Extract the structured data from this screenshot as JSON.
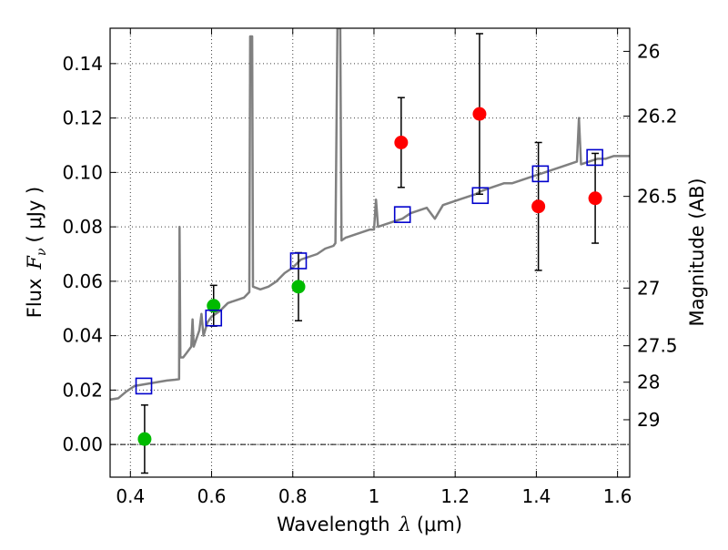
{
  "chart_data": {
    "type": "scatter",
    "xlabel": "Wavelength",
    "xlabel_symbol": "λ",
    "xlabel_unit": "(μm)",
    "ylabel": "Flux",
    "ylabel_symbol": "F",
    "ylabel_subscript": "ν",
    "ylabel_unit": "( μJy )",
    "y2label": "Magnitude (AB)",
    "xlim": [
      0.35,
      1.63
    ],
    "ylim": [
      -0.012,
      0.153
    ],
    "grid": true,
    "zero_line": true,
    "x_ticks": [
      {
        "value": 0.4,
        "label": "0.4"
      },
      {
        "value": 0.6,
        "label": "0.6"
      },
      {
        "value": 0.8,
        "label": "0.8"
      },
      {
        "value": 1.0,
        "label": "1"
      },
      {
        "value": 1.2,
        "label": "1.2"
      },
      {
        "value": 1.4,
        "label": "1.4"
      },
      {
        "value": 1.6,
        "label": "1.6"
      }
    ],
    "y_ticks": [
      {
        "value": 0.0,
        "label": "0.00"
      },
      {
        "value": 0.02,
        "label": "0.02"
      },
      {
        "value": 0.04,
        "label": "0.04"
      },
      {
        "value": 0.06,
        "label": "0.06"
      },
      {
        "value": 0.08,
        "label": "0.08"
      },
      {
        "value": 0.1,
        "label": "0.10"
      },
      {
        "value": 0.12,
        "label": "0.12"
      },
      {
        "value": 0.14,
        "label": "0.14"
      }
    ],
    "y2_ticks": [
      {
        "flux": 0.1445,
        "label": "26"
      },
      {
        "flux": 0.1207,
        "label": "26.2"
      },
      {
        "flux": 0.0912,
        "label": "26.5"
      },
      {
        "flux": 0.0575,
        "label": "27"
      },
      {
        "flux": 0.0363,
        "label": "27.5"
      },
      {
        "flux": 0.0229,
        "label": "28"
      },
      {
        "flux": 0.0091,
        "label": "29"
      }
    ],
    "series": [
      {
        "name": "green-detections",
        "marker": "circle",
        "color": "#00bb00",
        "points": [
          {
            "x": 0.435,
            "y": 0.002,
            "err": 0.0125
          },
          {
            "x": 0.605,
            "y": 0.051,
            "err": 0.0075
          },
          {
            "x": 0.814,
            "y": 0.058,
            "err": 0.0125
          }
        ]
      },
      {
        "name": "red-detections",
        "marker": "circle",
        "color": "#ff0000",
        "points": [
          {
            "x": 1.067,
            "y": 0.111,
            "err": 0.0165
          },
          {
            "x": 1.26,
            "y": 0.1215,
            "err": 0.0295
          },
          {
            "x": 1.405,
            "y": 0.0875,
            "err": 0.0235
          },
          {
            "x": 1.545,
            "y": 0.0905,
            "err": 0.0165
          }
        ]
      },
      {
        "name": "model-photometry",
        "marker": "square",
        "color": "#0000cc",
        "points": [
          {
            "x": 0.433,
            "y": 0.0215
          },
          {
            "x": 0.605,
            "y": 0.0465
          },
          {
            "x": 0.814,
            "y": 0.0675
          },
          {
            "x": 1.07,
            "y": 0.0845
          },
          {
            "x": 1.262,
            "y": 0.0915
          },
          {
            "x": 1.41,
            "y": 0.0995
          },
          {
            "x": 1.544,
            "y": 0.1055
          }
        ]
      }
    ],
    "model_spectrum": {
      "color": "#808080",
      "points": [
        [
          0.35,
          0.0165
        ],
        [
          0.37,
          0.017
        ],
        [
          0.39,
          0.0195
        ],
        [
          0.41,
          0.0215
        ],
        [
          0.43,
          0.022
        ],
        [
          0.45,
          0.0225
        ],
        [
          0.47,
          0.023
        ],
        [
          0.49,
          0.0235
        ],
        [
          0.51,
          0.0238
        ],
        [
          0.52,
          0.024
        ],
        [
          0.521,
          0.08
        ],
        [
          0.523,
          0.032
        ],
        [
          0.53,
          0.032
        ],
        [
          0.54,
          0.034
        ],
        [
          0.55,
          0.036
        ],
        [
          0.553,
          0.046
        ],
        [
          0.556,
          0.036
        ],
        [
          0.57,
          0.042
        ],
        [
          0.575,
          0.048
        ],
        [
          0.58,
          0.04
        ],
        [
          0.59,
          0.045
        ],
        [
          0.6,
          0.047
        ],
        [
          0.62,
          0.049
        ],
        [
          0.64,
          0.052
        ],
        [
          0.66,
          0.053
        ],
        [
          0.68,
          0.054
        ],
        [
          0.693,
          0.056
        ],
        [
          0.695,
          0.15
        ],
        [
          0.7,
          0.15
        ],
        [
          0.702,
          0.058
        ],
        [
          0.72,
          0.057
        ],
        [
          0.74,
          0.058
        ],
        [
          0.76,
          0.06
        ],
        [
          0.78,
          0.063
        ],
        [
          0.8,
          0.065
        ],
        [
          0.82,
          0.068
        ],
        [
          0.84,
          0.069
        ],
        [
          0.86,
          0.07
        ],
        [
          0.88,
          0.072
        ],
        [
          0.9,
          0.073
        ],
        [
          0.905,
          0.074
        ],
        [
          0.91,
          0.153
        ],
        [
          0.917,
          0.153
        ],
        [
          0.92,
          0.075
        ],
        [
          0.93,
          0.076
        ],
        [
          0.95,
          0.077
        ],
        [
          0.97,
          0.078
        ],
        [
          0.99,
          0.079
        ],
        [
          1.0,
          0.079
        ],
        [
          1.005,
          0.09
        ],
        [
          1.01,
          0.08
        ],
        [
          1.03,
          0.081
        ],
        [
          1.05,
          0.082
        ],
        [
          1.07,
          0.083
        ],
        [
          1.09,
          0.085
        ],
        [
          1.11,
          0.086
        ],
        [
          1.13,
          0.087
        ],
        [
          1.15,
          0.083
        ],
        [
          1.17,
          0.088
        ],
        [
          1.19,
          0.089
        ],
        [
          1.21,
          0.09
        ],
        [
          1.23,
          0.091
        ],
        [
          1.25,
          0.092
        ],
        [
          1.262,
          0.093
        ],
        [
          1.28,
          0.094
        ],
        [
          1.3,
          0.095
        ],
        [
          1.32,
          0.096
        ],
        [
          1.34,
          0.096
        ],
        [
          1.36,
          0.097
        ],
        [
          1.38,
          0.098
        ],
        [
          1.4,
          0.099
        ],
        [
          1.42,
          0.1
        ],
        [
          1.44,
          0.101
        ],
        [
          1.46,
          0.102
        ],
        [
          1.48,
          0.103
        ],
        [
          1.5,
          0.104
        ],
        [
          1.505,
          0.12
        ],
        [
          1.51,
          0.103
        ],
        [
          1.53,
          0.104
        ],
        [
          1.55,
          0.105
        ],
        [
          1.57,
          0.105
        ],
        [
          1.59,
          0.106
        ],
        [
          1.61,
          0.106
        ],
        [
          1.63,
          0.106
        ]
      ]
    }
  }
}
